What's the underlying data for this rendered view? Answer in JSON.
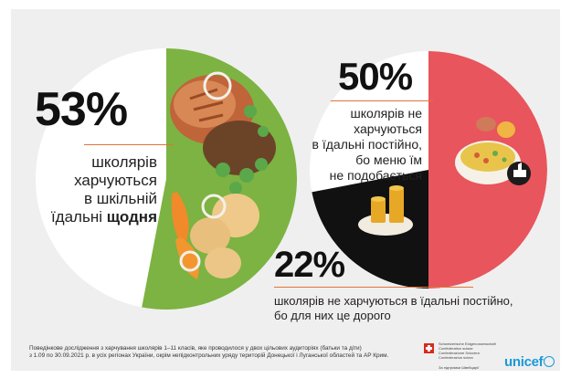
{
  "chart_data": [
    {
      "type": "pie",
      "values": [
        53
      ],
      "value_labels": [
        "53%"
      ],
      "caption": [
        "школярів",
        "харчуються",
        "в шкільній",
        "їдальні"
      ],
      "caption_bold": "щодня"
    },
    {
      "type": "pie",
      "values": [
        50,
        22
      ],
      "value_labels": [
        "50%",
        "22%"
      ],
      "colors": [
        "#e8555c",
        "#111111"
      ],
      "captions": [
        [
          "школярів не харчуються",
          "в їдальні постійно,",
          "бо меню їм",
          "не подобається"
        ],
        [
          "школярів не харчуються в їдальні постійно,",
          "бо для них це дорого"
        ]
      ]
    }
  ],
  "colors": {
    "card": "#efefef",
    "plate_green": "#7cb342",
    "accent_rule": "#e2743a",
    "slice_red": "#e8555c",
    "slice_black": "#111111"
  },
  "icons": [
    "dislike-thumb-icon",
    "coins-icon",
    "food-plate-icon"
  ],
  "footer": {
    "note_lines": [
      "Поведінкове дослідження з харчування школярів 1–11 класів, яке проводилося у двох цільових аудиторіях (батьки та діти)",
      "з 1.09 по 30.09.2021 р. в усіх регіонах України, окрім непідконтрольних уряду територій Донецької і Луганської областей та АР Крим."
    ],
    "swiss_lines": [
      "Schweizerische Eidgenossenschaft",
      "Confédération suisse",
      "Confederazione Svizzera",
      "Confederaziun svizra"
    ],
    "swiss_sub": "За підтримки Швейцарії",
    "unicef": "unicef"
  }
}
